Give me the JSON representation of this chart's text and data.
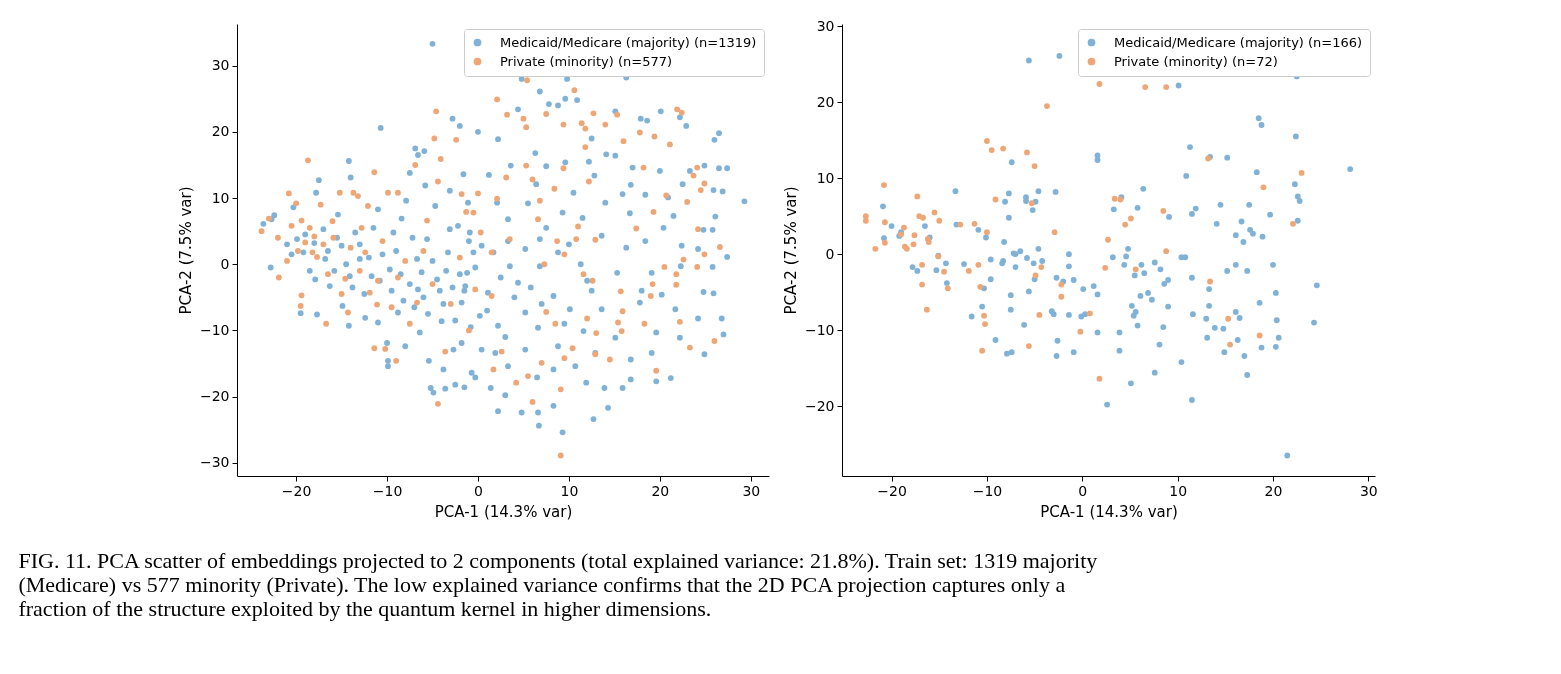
{
  "chart_data": [
    {
      "type": "scatter",
      "xlabel": "PCA-1 (14.3% var)",
      "ylabel": "PCA-2 (7.5% var)",
      "xlim": [
        -26.5,
        32
      ],
      "ylim": [
        -32,
        36.3
      ],
      "xticks": [
        -20,
        -10,
        0,
        10,
        20,
        30
      ],
      "yticks": [
        -30,
        -20,
        -10,
        0,
        10,
        20,
        30
      ],
      "legend": "top right",
      "marker": "circle",
      "annotations": [
        "FIG. 11. PCA scatter of embeddings projected to 2 components (total explained variance: 21.8%). Train set: 1319 majority (Medicare) vs 577 minority (Private). The low explained variance confirms that the 2D PCA projection captures only a fraction of the structure exploited by the quantum kernel in higher dimensions."
      ],
      "series": [
        {
          "name": "Medicaid/Medicare (majority) (n=1319)",
          "color": "#7fb2d6",
          "x": [
            -23.6,
            -22.7,
            -22.8,
            -22.4,
            -20.3,
            -19.9,
            -19.5,
            -19.2,
            -17.8,
            -17.5,
            -17.7,
            -17.9,
            -17.0,
            -16.8,
            -16.3,
            -15.4,
            -15.0,
            -14.9,
            -14.2,
            -14.2,
            -14.0,
            -14.1,
            -13.5,
            -13.0,
            -12.4,
            -11.7,
            -10.7,
            -11.0,
            -11.0,
            -10.0,
            -9.9,
            -9.9,
            -9.7,
            -9.3,
            -8.8,
            -8.4,
            -8.0,
            -7.9,
            -7.5,
            -6.9,
            -6.7,
            -6.6,
            -6.6,
            -6.4,
            -5.9,
            -5.8,
            -5.6,
            -5.4,
            -5.2,
            -5.0,
            -4.9,
            -4.7,
            -4.5,
            -4.0,
            -3.8,
            -3.6,
            -3.3,
            -3.1,
            -3.1,
            -2.8,
            -2.7,
            -2.5,
            -2.2,
            -2.0,
            -1.8,
            -1.6,
            -1.5,
            -1.8,
            -1.2,
            -1.1,
            -0.7,
            -0.5,
            -0.3,
            0.0,
            0.2,
            0.4,
            -21.0,
            -20.5,
            -19.0,
            -18.5,
            -18.0,
            -16.5,
            -15.8,
            -15.5,
            -14.5,
            -13.8,
            -13.0,
            -12.5,
            -12.0,
            -11.5,
            -10.8,
            -10.5,
            -9.5,
            -9.0,
            -8.5,
            -8.2,
            -7.5,
            -7.0,
            -7.2,
            -6.2,
            -6.0,
            -5.5,
            -5.0,
            -4.2,
            -3.8,
            -3.5,
            -2.8,
            -2.5,
            -2.0,
            -1.5,
            -1.0,
            -0.8,
            4.8,
            9.8,
            16.3,
            6.8,
            9.6,
            8.8,
            4.4,
            7.8,
            10.9,
            15.1,
            17.9,
            18.6,
            20.1,
            22.2,
            22.9,
            26.5,
            26.0,
            24.9,
            26.5,
            27.4,
            29.3,
            26.9,
            2.2,
            6.3,
            12.5,
            15.1,
            14.1,
            3.6,
            9.6,
            12.2,
            20.0,
            23.3,
            17.0,
            12.8,
            7.5,
            1.2,
            6.4,
            10.5,
            15.9,
            16.8,
            18.4,
            20.9,
            22.5,
            25.9,
            5.5,
            2.1,
            14.0,
            9.3,
            11.5,
            16.7,
            21.5,
            20.4,
            26.1,
            25.8,
            24.8,
            3.3,
            -0.9,
            0.4,
            1.7,
            3.3,
            5.2,
            6.8,
            8.8,
            13.6,
            16.3,
            18.4,
            22.4,
            24.2,
            27.4,
            25.8,
            22.3,
            19.1,
            15.3,
            11.3,
            6.8,
            3.5,
            -0.3,
            -1.4,
            1.1,
            4.4,
            8.3,
            12.5,
            18.0,
            20.2,
            24.8,
            25.9,
            26.8,
            24.2,
            21.7,
            17.8,
            13.6,
            10.1,
            5.2,
            2.2,
            6.6,
            11.6,
            15.1,
            19.6,
            22.2,
            27.0,
            24.9,
            21.2,
            19.6,
            16.8,
            16.8,
            15.9,
            14.3,
            12.7,
            13.9,
            11.9,
            9.3,
            8.3,
            6.7,
            6.6,
            4.8,
            2.2,
            3.0,
            1.4,
            3.3,
            6.5,
            8.3,
            10.7,
            12.9,
            19.1,
            8.8,
            5.2,
            1.9,
            2.5,
            4.0,
            5.8,
            7.0,
            1.0,
            3.0,
            9.5,
            7.5,
            10.0,
            12.0
          ],
          "values": [
            6.1,
            6.8,
            -0.5,
            7.4,
            8.6,
            3.8,
            -7.4,
            1.8,
            10.8,
            12.7,
            -7.6,
            -2.3,
            5.3,
            0.8,
            -3.3,
            7.5,
            2.8,
            -6.3,
            15.6,
            -9.3,
            13.1,
            -1.8,
            4.8,
            0.8,
            -8.1,
            -1.8,
            20.6,
            8.3,
            -8.8,
            -11.9,
            -14.6,
            -15.4,
            -0.8,
            4.8,
            -7.3,
            6.9,
            -12.4,
            9.6,
            13.8,
            17.5,
            0.8,
            16.5,
            -3.8,
            -10.3,
            17.1,
            11.9,
            3.8,
            -14.6,
            -18.7,
            33.3,
            -19.4,
            8.8,
            -2.3,
            -8.6,
            -15.9,
            -18.8,
            1.8,
            5.3,
            11.1,
            22.0,
            -12.9,
            -18.2,
            5.8,
            20.9,
            -5.8,
            13.6,
            -18.6,
            -11.9,
            -1.3,
            9.3,
            -16.4,
            1.8,
            -17.1,
            20.0,
            -7.8,
            -12.9,
            3.0,
            1.5,
            4.5,
            -1.0,
            3.2,
            2.0,
            -1.0,
            4.0,
            0.0,
            -3.5,
            3.0,
            -4.5,
            1.0,
            5.5,
            -2.5,
            1.5,
            -4.0,
            2.0,
            -1.5,
            -5.5,
            -3.0,
            -6.5,
            4.0,
            -1.2,
            -5.0,
            -7.5,
            0.5,
            -4.0,
            -6.0,
            -1.0,
            -3.5,
            -8.5,
            -1.5,
            -4.0,
            3.5,
            -9.5,
            28.0,
            28.0,
            28.2,
            26.1,
            25.0,
            24.0,
            23.4,
            24.2,
            24.8,
            23.1,
            22.0,
            21.7,
            23.1,
            22.2,
            20.9,
            19.8,
            18.8,
            14.9,
            14.5,
            14.5,
            9.5,
            11.0,
            18.9,
            16.8,
            19.0,
            16.4,
            16.6,
            14.9,
            15.4,
            15.5,
            14.1,
            14.1,
            14.6,
            13.4,
            14.8,
            13.5,
            12.1,
            10.8,
            10.6,
            12.0,
            10.5,
            10.1,
            12.1,
            11.2,
            9.2,
            9.3,
            9.3,
            7.8,
            7.0,
            7.7,
            7.3,
            5.5,
            7.2,
            5.2,
            5.2,
            6.8,
            4.8,
            2.8,
            1.8,
            3.5,
            2.3,
            3.8,
            1.8,
            4.3,
            2.5,
            3.5,
            2.8,
            2.3,
            1.1,
            -0.4,
            -0.3,
            -1.3,
            -1.3,
            0.0,
            -0.3,
            -0.3,
            -0.5,
            -3.3,
            -4.3,
            -2.8,
            -4.8,
            -4.0,
            -4.0,
            -4.6,
            -4.2,
            -4.4,
            -8.2,
            -8.2,
            -6.8,
            -5.8,
            -6.8,
            -6.8,
            -7.3,
            -9.3,
            -9.6,
            -10.1,
            -11.1,
            -10.3,
            -11.1,
            -10.6,
            -13.6,
            -17.2,
            -17.7,
            -14.4,
            -17.4,
            -18.7,
            -21.7,
            -23.4,
            -18.7,
            -17.9,
            -25.4,
            -21.4,
            -24.4,
            -22.4,
            -22.4,
            -22.2,
            -19.8,
            -18.7,
            -15.4,
            -17.1,
            -15.9,
            -15.4,
            -13.4,
            -13.4,
            -12.4,
            -12.9,
            -13.4,
            -2.0,
            -5.0,
            -3.5,
            -6.0,
            -7.0,
            -11.0,
            -9.0,
            5.5,
            3.0,
            -2.5
          ]
        },
        {
          "name": "Private (minority) (n=577)",
          "color": "#eea676",
          "x": [
            -23.8,
            -23.0,
            -21.9,
            -20.8,
            -20.0,
            -19.4,
            -18.7,
            -19.5,
            -19.4,
            -19.0,
            -18.5,
            -18.2,
            -17.7,
            -17.3,
            -16.7,
            -15.9,
            -15.2,
            -14.6,
            -14.3,
            -13.7,
            -13.2,
            -12.1,
            -12.4,
            -11.9,
            -11.4,
            -11.4,
            -11.1,
            -9.9,
            -10.2,
            -9.0,
            -8.8,
            -8.8,
            -6.9,
            -6.7,
            -5.6,
            -4.6,
            -4.8,
            -4.4,
            -4.1,
            -4.4,
            -3.6,
            -2.4,
            -1.8,
            -1.3,
            -0.3,
            0.0,
            0.3,
            -0.5,
            -22.0,
            -21.0,
            -20.5,
            -19.8,
            -18.0,
            -17.0,
            -16.5,
            -16.0,
            -15.0,
            -14.0,
            -13.0,
            -12.8,
            -11.0,
            -10.5,
            -9.5,
            -8.0,
            -7.5,
            -6.0,
            -5.0,
            -3.0,
            -2.0,
            -1.0,
            5.4,
            2.1,
            3.2,
            5.0,
            5.3,
            10.6,
            7.5,
            9.4,
            11.4,
            11.8,
            12.7,
            14.0,
            15.3,
            17.8,
            19.4,
            16.0,
            11.8,
            21.1,
            21.9,
            22.4,
            5.3,
            9.4,
            12.2,
            23.7,
            24.9,
            24.1,
            24.5,
            8.4,
            6.0,
            3.1,
            2.1,
            6.8,
            18.2,
            20.7,
            23.0,
            19.3,
            6.6,
            11.0,
            10.8,
            12.9,
            17.4,
            24.2,
            26.6,
            8.7,
            9.5,
            3.5,
            1.5,
            7.3,
            11.6,
            12.6,
            15.7,
            19.2,
            20.5,
            21.8,
            22.6,
            24.1,
            24.9,
            21.8,
            19.0,
            15.9,
            15.4,
            15.8,
            12.0,
            13.0,
            12.9,
            10.4,
            9.5,
            7.0,
            5.5,
            4.2,
            6.0,
            9.1,
            9.1,
            8.5,
            2.6,
            1.7,
            1.5,
            14.5,
            19.6,
            26.0,
            23.3,
            7.5,
            18.3,
            22.2
          ],
          "values": [
            5.0,
            6.9,
            -2.0,
            10.7,
            9.2,
            6.6,
            15.7,
            -6.3,
            -4.7,
            3.3,
            5.5,
            1.8,
            1.1,
            9.0,
            -9.0,
            4.0,
            10.8,
            -2.2,
            -7.3,
            10.8,
            10.3,
            8.8,
            1.8,
            -4.3,
            13.9,
            -12.7,
            -6.1,
            10.8,
            -12.8,
            -14.6,
            10.8,
            -2.0,
            15.0,
            -5.8,
            6.6,
            23.1,
            19.0,
            -21.1,
            15.9,
            12.5,
            -13.2,
            18.8,
            10.6,
            7.9,
            -3.8,
            10.7,
            4.8,
            7.8,
            4.0,
            0.5,
            5.8,
            2.0,
            4.2,
            3.0,
            -1.5,
            6.5,
            -4.5,
            2.5,
            -1.0,
            5.5,
            -2.5,
            3.5,
            -6.5,
            0.5,
            -9.0,
            2.0,
            -3.0,
            -6.0,
            1.0,
            -10.0,
            27.8,
            24.9,
            22.6,
            22.0,
            20.7,
            26.3,
            22.7,
            21.1,
            21.3,
            20.5,
            22.8,
            21.1,
            22.6,
            19.9,
            19.3,
            18.6,
            17.7,
            18.1,
            23.4,
            22.9,
            14.9,
            14.5,
            12.5,
            13.4,
            12.2,
            14.6,
            11.2,
            11.4,
            12.8,
            13.1,
            9.9,
            9.6,
            14.6,
            10.4,
            9.4,
            7.9,
            6.8,
            5.7,
            3.8,
            3.7,
            5.4,
            5.3,
            2.6,
            3.5,
            1.5,
            3.8,
            1.8,
            0.0,
            -1.5,
            -2.5,
            -4.1,
            -3.0,
            -0.4,
            -1.5,
            0.7,
            -0.4,
            1.5,
            -3.1,
            -4.8,
            -7.1,
            -8.8,
            -10.1,
            -8.2,
            -10.4,
            -13.6,
            -12.7,
            -14.2,
            -14.9,
            -16.9,
            -17.9,
            -20.8,
            -18.9,
            -28.9,
            -9.0,
            -13.2,
            -15.9,
            -4.8,
            -14.4,
            -16.1,
            -11.6,
            -12.6,
            -7.2,
            -9.0,
            -8.7
          ]
        }
      ]
    },
    {
      "type": "scatter",
      "xlabel": "PCA-1 (14.3% var)",
      "ylabel": "PCA-2 (7.5% var)",
      "xlim": [
        -25.2,
        30.7
      ],
      "ylim": [
        -29.2,
        30.3
      ],
      "xticks": [
        -20,
        -10,
        0,
        10,
        20,
        30
      ],
      "yticks": [
        -20,
        -10,
        0,
        10,
        20,
        30
      ],
      "legend": "top right",
      "marker": "circle",
      "series": [
        {
          "name": "Medicaid/Medicare (majority) (n=166)",
          "color": "#7fb2d6",
          "x": [
            -2.4,
            -5.6,
            -7.4,
            -13.3,
            -7.7,
            -8.1,
            -5.9,
            -5.9,
            -4.9,
            -4.6,
            -2.8,
            -5.2,
            -7.7,
            -20.9,
            -20.0,
            -19.0,
            -19.2,
            -20.8,
            -16.5,
            -16.0,
            -13.2,
            -10.9,
            -10.1,
            -8.2,
            -17.8,
            -17.3,
            -15.3,
            -15.1,
            -14.3,
            -14.2,
            -12.4,
            -11.6,
            -10.5,
            -10.3,
            -9.6,
            -9.6,
            -9.1,
            -8.4,
            -8.3,
            -7.9,
            -7.4,
            -7.5,
            -7.5,
            -7.2,
            -7.0,
            -7.0,
            -6.5,
            -6.1,
            -5.8,
            -5.6,
            -5.1,
            -5.0,
            -4.6,
            -4.2,
            -3.2,
            -3.0,
            -2.7,
            -2.6,
            -2.7,
            -2.0,
            -1.4,
            -1.4,
            -1.4,
            -0.9,
            -0.9,
            0.1,
            -0.1,
            0.3,
            10.1,
            22.5,
            18.5,
            18.8,
            22.4,
            11.3,
            1.6,
            1.6,
            13.4,
            15.2,
            10.9,
            18.3,
            28.1,
            22.3,
            6.4,
            4.1,
            22.6,
            22.8,
            3.3,
            5.8,
            9.1,
            11.5,
            11.9,
            14.5,
            17.5,
            19.7,
            14.1,
            16.7,
            22.6,
            17.6,
            17.9,
            16.1,
            16.9,
            18.9,
            4.8,
            3.2,
            4.6,
            10.4,
            10.8,
            4.4,
            6.2,
            7.6,
            8.2,
            6.5,
            5.5,
            16.1,
            15.2,
            17.3,
            20.0,
            11.5,
            9.0,
            8.6,
            1.2,
            1.6,
            6.9,
            7.3,
            6.1,
            13.3,
            24.6,
            20.3,
            18.6,
            5.2,
            5.6,
            5.4,
            9.0,
            13.3,
            11.6,
            13.0,
            16.1,
            16.5,
            20.4,
            24.3,
            5.8,
            8.5,
            13.9,
            14.8,
            1.6,
            3.9,
            13.1,
            20.6,
            16.3,
            8.1,
            18.8,
            20.3,
            3.9,
            14.9,
            17.0,
            10.4,
            7.6,
            17.3,
            5.1,
            11.5,
            2.6,
            21.5
          ],
          "values": [
            26.1,
            25.5,
            12.1,
            8.3,
            8.0,
            6.9,
            7.5,
            7.0,
            6.9,
            8.3,
            8.2,
            5.8,
            4.8,
            6.3,
            3.7,
            2.9,
            2.4,
            2.1,
            3.7,
            2.2,
            3.9,
            3.2,
            2.2,
            1.6,
            -1.7,
            -2.2,
            -2.1,
            -0.2,
            -1.2,
            -3.8,
            -1.3,
            -8.2,
            -6.9,
            -4.5,
            -0.7,
            -3.3,
            -11.3,
            -1.2,
            -0.9,
            -13.1,
            -12.9,
            -5.4,
            -7.3,
            0.1,
            0.0,
            -1.7,
            0.4,
            -9.3,
            -0.5,
            -4.9,
            -1.2,
            -3.3,
            0.7,
            -0.9,
            -7.5,
            -7.9,
            -3.1,
            -11.4,
            -13.4,
            -3.6,
            0.0,
            -1.6,
            -8.0,
            -3.4,
            -12.9,
            -4.6,
            -8.2,
            -7.9,
            22.2,
            23.4,
            17.9,
            17.0,
            15.5,
            14.1,
            13.0,
            12.4,
            12.8,
            12.7,
            10.3,
            10.8,
            11.2,
            9.2,
            8.6,
            7.5,
            7.6,
            7.0,
            5.9,
            6.1,
            4.9,
            5.3,
            6.0,
            6.5,
            6.5,
            5.2,
            4.0,
            4.3,
            4.4,
            3.2,
            2.7,
            2.5,
            1.6,
            2.3,
            0.7,
            -0.4,
            -0.3,
            -0.4,
            -0.4,
            -1.4,
            -1.4,
            -1.1,
            -2.0,
            -2.5,
            -2.8,
            -1.4,
            -2.2,
            -2.2,
            -1.4,
            -3.1,
            -3.4,
            -3.9,
            -4.2,
            -5.3,
            -5.1,
            -6.0,
            -5.5,
            -4.6,
            -4.1,
            -5.1,
            -6.4,
            -6.8,
            -7.6,
            -8.1,
            -6.9,
            -6.8,
            -7.9,
            -8.5,
            -7.6,
            -8.4,
            -8.7,
            -9.0,
            -9.4,
            -9.6,
            -9.7,
            -9.8,
            -10.3,
            -10.3,
            -11.0,
            -11.0,
            -11.3,
            -11.9,
            -12.3,
            -12.2,
            -12.7,
            -12.9,
            -13.4,
            -14.2,
            -15.6,
            -15.9,
            -17.0,
            -19.2,
            -19.8,
            -26.5
          ]
        },
        {
          "name": "Private (minority) (n=72)",
          "color": "#eea676",
          "x": [
            -22.7,
            -22.7,
            -21.7,
            -20.8,
            -20.7,
            -20.7,
            -18.7,
            -18.6,
            -18.4,
            -19.0,
            -17.3,
            -17.1,
            -16.7,
            -17.6,
            -17.7,
            -16.2,
            -16.1,
            -16.8,
            -16.8,
            -16.3,
            -15.5,
            -15.0,
            -15.1,
            -14.5,
            -14.1,
            -12.8,
            -11.9,
            -11.3,
            -10.9,
            -10.7,
            -10.3,
            -10.2,
            -10.5,
            -10.0,
            -10.0,
            -9.5,
            -9.1,
            -8.3,
            -5.8,
            -5.3,
            -5.0,
            -5.6,
            -4.9,
            -4.3,
            -4.5,
            -3.7,
            -2.9,
            -2.2,
            -2.2,
            -0.2,
            1.8,
            6.6,
            8.8,
            13.2,
            23.0,
            19.0,
            3.4,
            4.0,
            5.1,
            4.5,
            8.5,
            22.1,
            2.7,
            8.8,
            2.4,
            5.6,
            13.4,
            0.8,
            15.3,
            18.6,
            15.5,
            1.8
          ],
          "values": [
            5.0,
            4.4,
            0.7,
            9.1,
            4.2,
            1.5,
            3.5,
            1.0,
            0.7,
            2.6,
            7.6,
            5.0,
            4.8,
            2.5,
            1.3,
            2.0,
            1.6,
            -1.4,
            -4.0,
            -7.3,
            5.5,
            4.4,
            -0.3,
            -2.3,
            -4.5,
            3.9,
            -2.2,
            4.0,
            -1.4,
            -4.3,
            -8.1,
            -9.2,
            -12.7,
            14.9,
            2.9,
            13.7,
            7.2,
            13.9,
            13.4,
            6.7,
            11.6,
            -12.1,
            -2.8,
            -1.7,
            -8.0,
            19.5,
            2.9,
            -4.0,
            -5.6,
            -10.2,
            22.4,
            22.0,
            22.0,
            12.6,
            10.7,
            8.8,
            7.3,
            7.2,
            4.7,
            3.9,
            5.7,
            4.0,
            1.9,
            0.4,
            -1.8,
            -2.0,
            -3.6,
            -7.8,
            -8.5,
            -10.7,
            -11.9,
            -16.4
          ]
        }
      ]
    }
  ]
}
